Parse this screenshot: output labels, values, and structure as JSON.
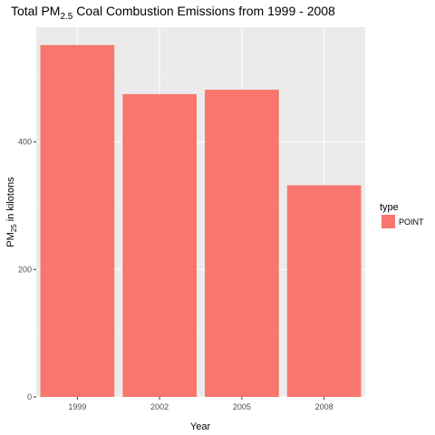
{
  "chart_data": {
    "type": "bar",
    "title": {
      "prefix": "Total PM",
      "subscript": "2.5",
      "suffix": " Coal Combustion Emissions from 1999 - 2008"
    },
    "xlabel": "Year",
    "ylabel": {
      "prefix": "PM",
      "subscript": "25",
      "suffix": " in kilotons"
    },
    "categories": [
      "1999",
      "2002",
      "2005",
      "2008"
    ],
    "series": [
      {
        "name": "POINT",
        "values": [
          552,
          475,
          482,
          332
        ]
      }
    ],
    "yticks": [
      0,
      200,
      400
    ],
    "ylim": [
      0,
      580
    ],
    "grid": true,
    "legend": {
      "title": "type",
      "position": "right"
    },
    "colors": {
      "bar": "#F8766D",
      "panel": "#EBEBEB",
      "grid_major": "#FFFFFF",
      "grid_minor": "#F5F5F5"
    }
  }
}
